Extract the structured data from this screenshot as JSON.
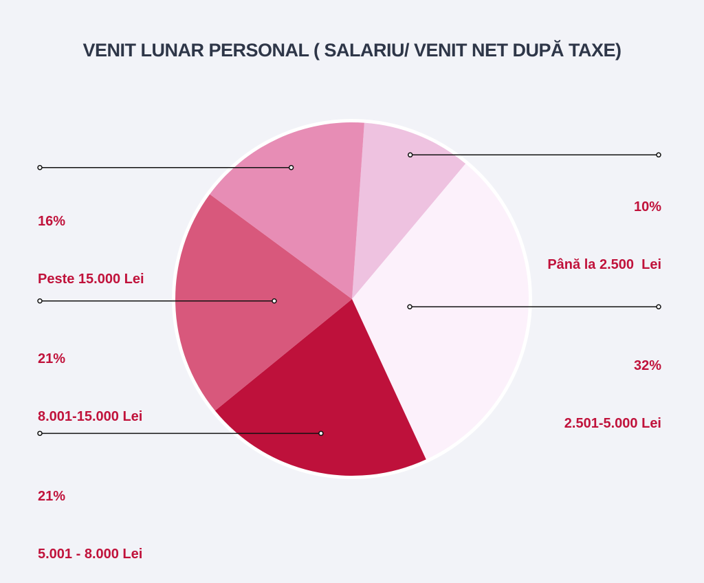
{
  "title": "VENIT LUNAR PERSONAL ( SALARIU/ VENIT NET DUPĂ TAXE)",
  "chart_data": {
    "type": "pie",
    "title": "VENIT LUNAR PERSONAL ( SALARIU/ VENIT NET DUPĂ TAXE)",
    "slices": [
      {
        "label": "Până la 2.500  Lei",
        "value": 10,
        "value_label": "10%",
        "color": "#eec2e0"
      },
      {
        "label": "2.501-5.000 Lei",
        "value": 32,
        "value_label": "32%",
        "color": "#fcf1fb"
      },
      {
        "label": "5.001 - 8.000 Lei",
        "value": 21,
        "value_label": "21%",
        "color": "#be113b"
      },
      {
        "label": "8.001-15.000 Lei",
        "value": 21,
        "value_label": "21%",
        "color": "#d8587c"
      },
      {
        "label": "Peste 15.000 Lei",
        "value": 16,
        "value_label": "16%",
        "color": "#e78db5"
      }
    ],
    "label_color": "#c0123b",
    "leader_color": "#111111"
  }
}
